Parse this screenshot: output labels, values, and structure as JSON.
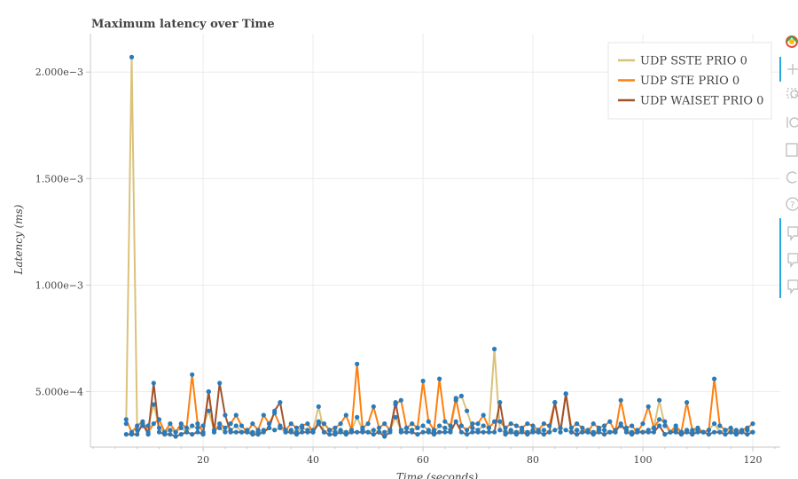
{
  "chart_data": {
    "type": "line",
    "title": "Maximum latency over Time",
    "xlabel": "Time (seconds)",
    "ylabel": "Latency (ms)",
    "xlim": [
      -0.5,
      125
    ],
    "ylim": [
      0.00024,
      0.00218
    ],
    "x_ticks": [
      20,
      40,
      60,
      80,
      100,
      120
    ],
    "x_tick_labels": [
      "20",
      "40",
      "60",
      "80",
      "100",
      "120"
    ],
    "y_ticks": [
      0.0005,
      0.001,
      0.0015,
      0.002
    ],
    "y_tick_labels": [
      "5.000e−4",
      "1.000e−3",
      "1.500e−3",
      "2.000e−3"
    ],
    "grid": true,
    "legend_position": "top-right",
    "marker_color": "#2b7bba",
    "series": [
      {
        "name": "UDP SSTE PRIO 0",
        "color": "#dbc27a",
        "x": [
          6,
          7,
          8,
          9,
          10,
          11,
          12,
          13,
          14,
          15,
          16,
          17,
          18,
          19,
          20,
          21,
          22,
          23,
          24,
          25,
          26,
          27,
          28,
          29,
          30,
          31,
          32,
          33,
          34,
          35,
          36,
          37,
          38,
          39,
          40,
          41,
          42,
          43,
          44,
          45,
          46,
          47,
          48,
          49,
          50,
          51,
          52,
          53,
          54,
          55,
          56,
          57,
          58,
          59,
          60,
          61,
          62,
          63,
          64,
          65,
          66,
          67,
          68,
          69,
          70,
          71,
          72,
          73,
          74,
          75,
          76,
          77,
          78,
          79,
          80,
          81,
          82,
          83,
          84,
          85,
          86,
          87,
          88,
          89,
          90,
          91,
          92,
          93,
          94,
          95,
          96,
          97,
          98,
          99,
          100,
          101,
          102,
          103,
          104,
          105,
          106,
          107,
          108,
          109,
          110,
          111,
          112,
          113,
          114,
          115,
          116,
          117,
          118,
          119,
          120
        ],
        "values": [
          0.00035,
          0.00207,
          0.00032,
          0.00034,
          0.00034,
          0.00044,
          0.00033,
          0.00031,
          0.00032,
          0.00031,
          0.00033,
          0.00031,
          0.00034,
          0.00033,
          0.00034,
          0.00041,
          0.00032,
          0.00033,
          0.00031,
          0.00032,
          0.00034,
          0.00031,
          0.00032,
          0.00031,
          0.00031,
          0.00032,
          0.00033,
          0.00032,
          0.00033,
          0.00031,
          0.00032,
          0.00031,
          0.00033,
          0.00032,
          0.00032,
          0.00043,
          0.00031,
          0.00032,
          0.00031,
          0.00032,
          0.00031,
          0.00032,
          0.00038,
          0.00032,
          0.00031,
          0.00032,
          0.00031,
          0.00031,
          0.00032,
          0.00038,
          0.00032,
          0.00033,
          0.00032,
          0.00033,
          0.00034,
          0.00032,
          0.00031,
          0.00034,
          0.00033,
          0.00032,
          0.00046,
          0.00048,
          0.00041,
          0.00033,
          0.00032,
          0.00034,
          0.00033,
          0.0007,
          0.00032,
          0.00031,
          0.00032,
          0.00031,
          0.00032,
          0.00031,
          0.00032,
          0.00031,
          0.00032,
          0.00031,
          0.00032,
          0.00033,
          0.00032,
          0.00031,
          0.00032,
          0.00031,
          0.00032,
          0.00031,
          0.00032,
          0.00032,
          0.00031,
          0.00032,
          0.00034,
          0.00032,
          0.00031,
          0.00032,
          0.00031,
          0.00032,
          0.00033,
          0.00046,
          0.00034,
          0.00031,
          0.00032,
          0.00031,
          0.00032,
          0.00031,
          0.00032,
          0.00031,
          0.00032,
          0.00035,
          0.00031,
          0.00032,
          0.00031,
          0.00032,
          0.00031,
          0.00032,
          0.00031
        ]
      },
      {
        "name": "UDP STE PRIO 0",
        "color": "#ff7f0e",
        "x": [
          6,
          7,
          8,
          9,
          10,
          11,
          12,
          13,
          14,
          15,
          16,
          17,
          18,
          19,
          20,
          21,
          22,
          23,
          24,
          25,
          26,
          27,
          28,
          29,
          30,
          31,
          32,
          33,
          34,
          35,
          36,
          37,
          38,
          39,
          40,
          41,
          42,
          43,
          44,
          45,
          46,
          47,
          48,
          49,
          50,
          51,
          52,
          53,
          54,
          55,
          56,
          57,
          58,
          59,
          60,
          61,
          62,
          63,
          64,
          65,
          66,
          67,
          68,
          69,
          70,
          71,
          72,
          73,
          74,
          75,
          76,
          77,
          78,
          79,
          80,
          81,
          82,
          83,
          84,
          85,
          86,
          87,
          88,
          89,
          90,
          91,
          92,
          93,
          94,
          95,
          96,
          97,
          98,
          99,
          100,
          101,
          102,
          103,
          104,
          105,
          106,
          107,
          108,
          109,
          110,
          111,
          112,
          113,
          114,
          115,
          116,
          117,
          118,
          119,
          120
        ],
        "values": [
          0.00037,
          0.00031,
          0.00034,
          0.00036,
          0.00031,
          0.00035,
          0.00037,
          0.00031,
          0.00035,
          0.00031,
          0.00035,
          0.00033,
          0.00058,
          0.00035,
          0.00031,
          0.0005,
          0.00031,
          0.00035,
          0.00033,
          0.00035,
          0.00039,
          0.00034,
          0.00031,
          0.00035,
          0.00032,
          0.00039,
          0.00035,
          0.0004,
          0.00034,
          0.00032,
          0.00035,
          0.00033,
          0.00034,
          0.00035,
          0.00031,
          0.00036,
          0.00035,
          0.00032,
          0.00033,
          0.00035,
          0.00039,
          0.00032,
          0.00063,
          0.00033,
          0.00035,
          0.00043,
          0.00033,
          0.00035,
          0.00032,
          0.00044,
          0.00046,
          0.00033,
          0.00035,
          0.00033,
          0.00055,
          0.00036,
          0.00032,
          0.00056,
          0.00036,
          0.00034,
          0.00047,
          0.00034,
          0.00032,
          0.00035,
          0.00035,
          0.00039,
          0.00033,
          0.00036,
          0.00036,
          0.00033,
          0.00035,
          0.00034,
          0.00033,
          0.00035,
          0.00034,
          0.00032,
          0.00035,
          0.00034,
          0.00045,
          0.00031,
          0.00049,
          0.00033,
          0.00035,
          0.00033,
          0.00031,
          0.00035,
          0.00033,
          0.00034,
          0.00036,
          0.00031,
          0.00046,
          0.00033,
          0.00034,
          0.00031,
          0.00035,
          0.00043,
          0.00033,
          0.00037,
          0.00036,
          0.00031,
          0.00034,
          0.00031,
          0.00045,
          0.00032,
          0.00033,
          0.00031,
          0.00032,
          0.00056,
          0.00034,
          0.00032,
          0.00033,
          0.00031,
          0.00032,
          0.00033,
          0.00035
        ]
      },
      {
        "name": "UDP WAISET PRIO 0",
        "color": "#a0522d",
        "x": [
          6,
          7,
          8,
          9,
          10,
          11,
          12,
          13,
          14,
          15,
          16,
          17,
          18,
          19,
          20,
          21,
          22,
          23,
          24,
          25,
          26,
          27,
          28,
          29,
          30,
          31,
          32,
          33,
          34,
          35,
          36,
          37,
          38,
          39,
          40,
          41,
          42,
          43,
          44,
          45,
          46,
          47,
          48,
          49,
          50,
          51,
          52,
          53,
          54,
          55,
          56,
          57,
          58,
          59,
          60,
          61,
          62,
          63,
          64,
          65,
          66,
          67,
          68,
          69,
          70,
          71,
          72,
          73,
          74,
          75,
          76,
          77,
          78,
          79,
          80,
          81,
          82,
          83,
          84,
          85,
          86,
          87,
          88,
          89,
          90,
          91,
          92,
          93,
          94,
          95,
          96,
          97,
          98,
          99,
          100,
          101,
          102,
          103,
          104,
          105,
          106,
          107,
          108,
          109,
          110,
          111,
          112,
          113,
          114,
          115,
          116,
          117,
          118,
          119,
          120
        ],
        "values": [
          0.0003,
          0.0003,
          0.0003,
          0.00035,
          0.0003,
          0.00054,
          0.00031,
          0.0003,
          0.0003,
          0.00029,
          0.0003,
          0.00031,
          0.0003,
          0.00031,
          0.0003,
          0.0005,
          0.00031,
          0.00054,
          0.00039,
          0.00031,
          0.00031,
          0.00031,
          0.00031,
          0.0003,
          0.0003,
          0.00031,
          0.00033,
          0.00041,
          0.00045,
          0.00031,
          0.00031,
          0.0003,
          0.00031,
          0.00031,
          0.00031,
          0.00035,
          0.00031,
          0.0003,
          0.0003,
          0.00031,
          0.0003,
          0.00031,
          0.00031,
          0.00031,
          0.00031,
          0.0003,
          0.00031,
          0.00029,
          0.00031,
          0.00045,
          0.00031,
          0.00031,
          0.00031,
          0.0003,
          0.00031,
          0.00031,
          0.0003,
          0.00031,
          0.00031,
          0.00031,
          0.00036,
          0.00031,
          0.0003,
          0.00031,
          0.00031,
          0.00031,
          0.00031,
          0.00031,
          0.00045,
          0.0003,
          0.00031,
          0.0003,
          0.00031,
          0.0003,
          0.00031,
          0.00031,
          0.0003,
          0.00031,
          0.00045,
          0.00031,
          0.00049,
          0.00031,
          0.0003,
          0.00031,
          0.00031,
          0.0003,
          0.00031,
          0.0003,
          0.00031,
          0.00031,
          0.00035,
          0.00031,
          0.0003,
          0.00031,
          0.00031,
          0.00031,
          0.00031,
          0.00034,
          0.0003,
          0.00031,
          0.00031,
          0.0003,
          0.00031,
          0.0003,
          0.00031,
          0.00031,
          0.0003,
          0.00031,
          0.00031,
          0.0003,
          0.00031,
          0.0003,
          0.00031,
          0.0003,
          0.00031
        ]
      }
    ]
  }
}
